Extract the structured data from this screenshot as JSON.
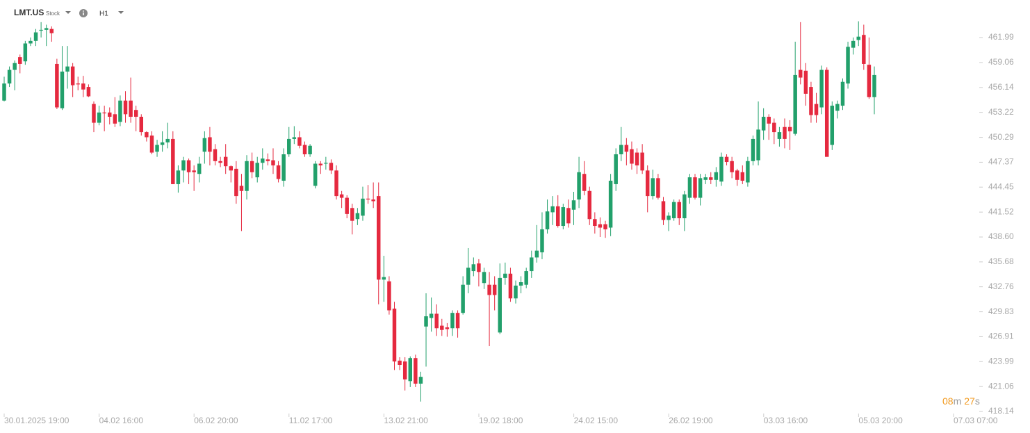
{
  "header": {
    "symbol": "LMT.US",
    "kind": "Stock",
    "interval": "H1"
  },
  "chart_data": {
    "type": "candlestick",
    "up_color": "#22a06b",
    "down_color": "#e5293f",
    "ylim": [
      418.14,
      463.95
    ],
    "yticks": [
      461.99,
      459.06,
      456.14,
      453.22,
      450.29,
      447.37,
      444.45,
      441.52,
      {
        "value": 438.6,
        "label": "438.60"
      },
      435.68,
      432.76,
      429.83,
      426.91,
      423.99,
      421.06,
      418.14
    ],
    "x_labels": [
      "30.01.2025 19:00",
      "04.02 16:00",
      "06.02 20:00",
      "11.02 17:00",
      "13.02 21:00",
      "19.02 18:00",
      "24.02 15:00",
      "26.02 19:00",
      "03.03 16:00",
      "05.03 20:00",
      "07.03 07:00"
    ],
    "countdown": [
      "08",
      "m",
      "27",
      "s"
    ],
    "candles": [
      [
        454.6,
        457.4,
        454.5,
        456.6
      ],
      [
        456.6,
        458.6,
        456.2,
        458.2
      ],
      [
        458.2,
        459.3,
        455.8,
        459.0
      ],
      [
        459.7,
        460.0,
        457.8,
        458.9
      ],
      [
        459.2,
        461.6,
        458.8,
        461.3
      ],
      [
        461.3,
        462.0,
        461.0,
        461.6
      ],
      [
        461.6,
        463.0,
        461.0,
        462.6
      ],
      [
        462.8,
        463.8,
        462.0,
        462.9
      ],
      [
        462.9,
        463.5,
        461.0,
        463.1
      ],
      [
        463.0,
        463.3,
        461.5,
        462.5
      ],
      [
        458.9,
        459.5,
        453.6,
        453.8
      ],
      [
        453.7,
        461.0,
        453.5,
        458.0
      ],
      [
        458.0,
        461.0,
        456.0,
        458.6
      ],
      [
        458.6,
        459.0,
        455.0,
        456.4
      ],
      [
        456.6,
        457.4,
        455.8,
        456.5
      ],
      [
        456.6,
        457.5,
        455.0,
        455.9
      ],
      [
        456.2,
        456.5,
        455.0,
        455.1
      ],
      [
        454.2,
        454.5,
        450.9,
        452.0
      ],
      [
        452.0,
        454.0,
        451.7,
        453.2
      ],
      [
        453.2,
        454.0,
        451.0,
        453.1
      ],
      [
        453.2,
        453.8,
        451.8,
        452.7
      ],
      [
        453.0,
        455.0,
        451.5,
        451.9
      ],
      [
        452.1,
        455.2,
        451.6,
        454.6
      ],
      [
        454.6,
        455.7,
        452.0,
        453.0
      ],
      [
        454.6,
        457.3,
        452.0,
        452.7
      ],
      [
        453.5,
        454.0,
        451.0,
        452.7
      ],
      [
        452.7,
        453.0,
        450.5,
        450.9
      ],
      [
        450.9,
        451.0,
        449.8,
        450.3
      ],
      [
        450.5,
        451.0,
        448.3,
        448.5
      ],
      [
        448.6,
        450.0,
        448.0,
        449.4
      ],
      [
        449.4,
        451.0,
        448.6,
        449.7
      ],
      [
        449.7,
        452.0,
        449.0,
        450.1
      ],
      [
        450.1,
        451.0,
        444.8,
        444.8
      ],
      [
        444.8,
        447.0,
        443.8,
        446.4
      ],
      [
        446.4,
        448.0,
        445.0,
        447.6
      ],
      [
        447.6,
        447.8,
        444.8,
        446.2
      ],
      [
        446.4,
        447.0,
        444.0,
        446.2
      ],
      [
        446.0,
        448.0,
        445.0,
        447.2
      ],
      [
        448.6,
        451.0,
        447.2,
        450.2
      ],
      [
        450.3,
        451.5,
        447.0,
        448.6
      ],
      [
        448.9,
        449.5,
        447.0,
        447.5
      ],
      [
        447.5,
        448.0,
        446.8,
        447.3
      ],
      [
        448.0,
        449.5,
        446.0,
        446.9
      ],
      [
        446.9,
        447.0,
        445.0,
        446.4
      ],
      [
        446.6,
        447.5,
        442.5,
        443.4
      ],
      [
        444.6,
        446.0,
        439.3,
        444.0
      ],
      [
        444.0,
        448.2,
        443.0,
        447.5
      ],
      [
        447.5,
        448.5,
        445.5,
        446.2
      ],
      [
        445.6,
        448.0,
        445.0,
        447.3
      ],
      [
        447.3,
        449.0,
        446.5,
        447.8
      ],
      [
        447.7,
        448.4,
        447.0,
        447.5
      ],
      [
        447.6,
        449.0,
        446.0,
        447.0
      ],
      [
        447.0,
        447.5,
        445.0,
        445.4
      ],
      [
        445.2,
        449.0,
        444.5,
        448.3
      ],
      [
        448.3,
        451.5,
        448.0,
        450.1
      ],
      [
        450.1,
        451.6,
        449.5,
        450.3
      ],
      [
        450.3,
        451.0,
        449.0,
        449.3
      ],
      [
        449.4,
        449.8,
        448.0,
        448.3
      ],
      [
        448.3,
        449.5,
        448.0,
        449.3
      ],
      [
        444.6,
        447.5,
        444.3,
        447.2
      ],
      [
        447.2,
        447.5,
        446.0,
        447.0
      ],
      [
        447.2,
        448.0,
        446.5,
        447.3
      ],
      [
        447.3,
        447.7,
        446.0,
        446.4
      ],
      [
        446.4,
        447.0,
        443.0,
        443.4
      ],
      [
        443.6,
        444.0,
        442.0,
        443.2
      ],
      [
        443.2,
        443.5,
        440.8,
        441.3
      ],
      [
        442.0,
        442.5,
        438.9,
        440.5
      ],
      [
        440.7,
        442.0,
        440.0,
        441.4
      ],
      [
        441.1,
        444.5,
        440.5,
        443.1
      ],
      [
        443.1,
        444.7,
        442.5,
        443.0
      ],
      [
        443.0,
        445.0,
        442.0,
        442.8
      ],
      [
        443.4,
        445.0,
        430.7,
        433.6
      ],
      [
        433.6,
        436.4,
        431.0,
        433.9
      ],
      [
        433.4,
        434.0,
        429.5,
        430.0
      ],
      [
        430.2,
        431.0,
        423.0,
        424.0
      ],
      [
        424.1,
        424.5,
        423.0,
        423.6
      ],
      [
        424.0,
        424.5,
        420.6,
        421.9
      ],
      [
        421.7,
        424.6,
        421.0,
        424.4
      ],
      [
        424.4,
        424.8,
        421.0,
        421.4
      ],
      [
        421.4,
        422.8,
        419.3,
        422.2
      ],
      [
        428.1,
        432.0,
        423.4,
        429.3
      ],
      [
        429.1,
        431.5,
        427.5,
        429.6
      ],
      [
        429.6,
        430.7,
        427.0,
        427.9
      ],
      [
        428.2,
        429.0,
        427.0,
        427.7
      ],
      [
        428.0,
        428.5,
        426.9,
        427.8
      ],
      [
        427.9,
        430.0,
        427.0,
        429.7
      ],
      [
        429.7,
        430.0,
        426.8,
        427.9
      ],
      [
        429.7,
        434.0,
        429.5,
        433.0
      ],
      [
        433.0,
        437.3,
        432.0,
        435.0
      ],
      [
        434.6,
        436.2,
        434.0,
        435.4
      ],
      [
        435.5,
        436.0,
        432.8,
        434.5
      ],
      [
        433.2,
        435.0,
        432.5,
        434.5
      ],
      [
        433.0,
        434.5,
        425.8,
        431.8
      ],
      [
        433.0,
        434.0,
        430.0,
        431.8
      ],
      [
        427.4,
        435.5,
        427.2,
        433.8
      ],
      [
        433.8,
        435.6,
        433.0,
        434.3
      ],
      [
        434.3,
        435.0,
        431.0,
        431.4
      ],
      [
        431.4,
        433.5,
        430.8,
        432.9
      ],
      [
        432.9,
        434.0,
        432.0,
        433.3
      ],
      [
        433.0,
        435.0,
        432.6,
        434.6
      ],
      [
        434.6,
        437.0,
        433.8,
        436.2
      ],
      [
        436.2,
        440.0,
        435.6,
        437.0
      ],
      [
        436.8,
        441.5,
        436.0,
        439.5
      ],
      [
        439.5,
        443.0,
        439.0,
        441.6
      ],
      [
        441.5,
        443.4,
        440.0,
        442.2
      ],
      [
        442.2,
        443.5,
        439.7,
        439.9
      ],
      [
        439.9,
        442.5,
        439.5,
        442.1
      ],
      [
        442.0,
        443.0,
        439.7,
        440.2
      ],
      [
        441.8,
        443.9,
        440.0,
        442.9
      ],
      [
        443.0,
        448.0,
        442.0,
        446.2
      ],
      [
        446.0,
        447.5,
        443.5,
        444.0
      ],
      [
        444.0,
        444.5,
        440.0,
        440.7
      ],
      [
        440.7,
        441.5,
        439.0,
        439.9
      ],
      [
        440.1,
        440.9,
        438.6,
        439.7
      ],
      [
        440.1,
        440.5,
        438.5,
        439.5
      ],
      [
        439.7,
        446.0,
        438.7,
        445.2
      ],
      [
        444.8,
        449.0,
        444.0,
        448.3
      ],
      [
        448.3,
        451.5,
        447.5,
        449.4
      ],
      [
        449.4,
        450.2,
        447.0,
        448.6
      ],
      [
        448.9,
        449.8,
        446.5,
        447.2
      ],
      [
        448.5,
        449.0,
        446.0,
        447.0
      ],
      [
        448.5,
        449.5,
        446.0,
        446.4
      ],
      [
        446.4,
        447.0,
        441.5,
        443.4
      ],
      [
        443.4,
        446.5,
        443.0,
        445.5
      ],
      [
        445.5,
        446.0,
        443.0,
        443.2
      ],
      [
        442.8,
        443.3,
        440.0,
        440.6
      ],
      [
        440.6,
        441.5,
        439.3,
        441.1
      ],
      [
        440.8,
        443.0,
        440.5,
        442.7
      ],
      [
        442.7,
        443.0,
        440.0,
        440.8
      ],
      [
        440.8,
        444.0,
        439.3,
        443.6
      ],
      [
        443.2,
        446.0,
        442.5,
        445.6
      ],
      [
        445.6,
        446.0,
        443.0,
        443.2
      ],
      [
        443.2,
        446.0,
        442.3,
        445.5
      ],
      [
        445.3,
        446.0,
        444.8,
        445.6
      ],
      [
        445.6,
        446.2,
        444.8,
        445.3
      ],
      [
        445.3,
        446.8,
        444.5,
        446.2
      ],
      [
        445.1,
        448.5,
        444.6,
        448.0
      ],
      [
        448.0,
        448.3,
        447.0,
        447.4
      ],
      [
        447.5,
        448.0,
        445.5,
        446.2
      ],
      [
        446.4,
        446.6,
        444.6,
        445.3
      ],
      [
        446.2,
        447.0,
        444.8,
        445.2
      ],
      [
        445.0,
        448.0,
        444.5,
        447.5
      ],
      [
        447.5,
        450.5,
        447.0,
        450.1
      ],
      [
        447.6,
        454.5,
        447.0,
        451.2
      ],
      [
        451.1,
        453.7,
        450.0,
        452.7
      ],
      [
        452.7,
        453.0,
        450.0,
        451.9
      ],
      [
        452.0,
        452.5,
        449.5,
        450.9
      ],
      [
        450.1,
        451.5,
        449.2,
        450.9
      ],
      [
        451.5,
        452.5,
        449.0,
        450.1
      ],
      [
        451.5,
        452.3,
        448.8,
        451.0
      ],
      [
        450.7,
        461.5,
        450.5,
        457.6
      ],
      [
        458.2,
        463.8,
        456.5,
        457.3
      ],
      [
        458.1,
        459.0,
        454.0,
        455.4
      ],
      [
        456.2,
        456.8,
        452.0,
        452.9
      ],
      [
        454.2,
        455.5,
        452.0,
        452.9
      ],
      [
        453.8,
        458.7,
        453.0,
        458.2
      ],
      [
        458.2,
        458.5,
        448.0,
        448.0
      ],
      [
        449.4,
        454.5,
        448.8,
        454.0
      ],
      [
        453.4,
        454.6,
        452.5,
        454.2
      ],
      [
        454.0,
        457.2,
        453.5,
        456.8
      ],
      [
        456.6,
        461.5,
        456.0,
        460.9
      ],
      [
        460.8,
        462.0,
        460.0,
        461.6
      ],
      [
        461.7,
        463.9,
        461.0,
        462.1
      ],
      [
        462.3,
        463.5,
        458.2,
        458.9
      ],
      [
        458.8,
        462.0,
        454.8,
        455.0
      ],
      [
        455.0,
        458.6,
        453.0,
        457.6
      ]
    ]
  }
}
